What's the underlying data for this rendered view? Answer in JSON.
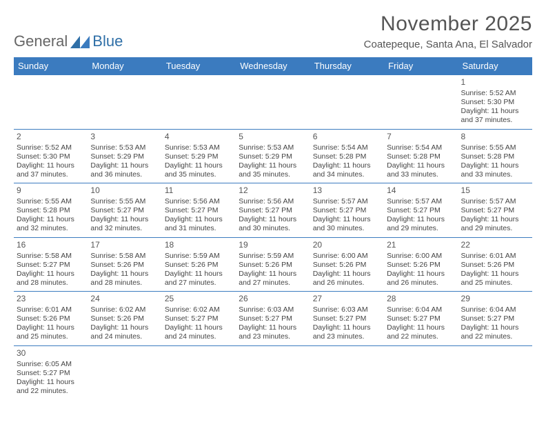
{
  "brand": {
    "general": "General",
    "blue": "Blue"
  },
  "colors": {
    "header_bg": "#3b7bbf",
    "header_text": "#ffffff",
    "cell_border": "#3b7bbf",
    "text": "#444444",
    "brand_blue": "#2F6FA7",
    "brand_grey": "#666666",
    "page_bg": "#ffffff"
  },
  "title": "November 2025",
  "location": "Coatepeque, Santa Ana, El Salvador",
  "weekdays": [
    "Sunday",
    "Monday",
    "Tuesday",
    "Wednesday",
    "Thursday",
    "Friday",
    "Saturday"
  ],
  "cells": [
    null,
    null,
    null,
    null,
    null,
    null,
    {
      "day": "1",
      "sunrise": "5:52 AM",
      "sunset": "5:30 PM",
      "daylight": "11 hours and 37 minutes."
    },
    {
      "day": "2",
      "sunrise": "5:52 AM",
      "sunset": "5:30 PM",
      "daylight": "11 hours and 37 minutes."
    },
    {
      "day": "3",
      "sunrise": "5:53 AM",
      "sunset": "5:29 PM",
      "daylight": "11 hours and 36 minutes."
    },
    {
      "day": "4",
      "sunrise": "5:53 AM",
      "sunset": "5:29 PM",
      "daylight": "11 hours and 35 minutes."
    },
    {
      "day": "5",
      "sunrise": "5:53 AM",
      "sunset": "5:29 PM",
      "daylight": "11 hours and 35 minutes."
    },
    {
      "day": "6",
      "sunrise": "5:54 AM",
      "sunset": "5:28 PM",
      "daylight": "11 hours and 34 minutes."
    },
    {
      "day": "7",
      "sunrise": "5:54 AM",
      "sunset": "5:28 PM",
      "daylight": "11 hours and 33 minutes."
    },
    {
      "day": "8",
      "sunrise": "5:55 AM",
      "sunset": "5:28 PM",
      "daylight": "11 hours and 33 minutes."
    },
    {
      "day": "9",
      "sunrise": "5:55 AM",
      "sunset": "5:28 PM",
      "daylight": "11 hours and 32 minutes."
    },
    {
      "day": "10",
      "sunrise": "5:55 AM",
      "sunset": "5:27 PM",
      "daylight": "11 hours and 32 minutes."
    },
    {
      "day": "11",
      "sunrise": "5:56 AM",
      "sunset": "5:27 PM",
      "daylight": "11 hours and 31 minutes."
    },
    {
      "day": "12",
      "sunrise": "5:56 AM",
      "sunset": "5:27 PM",
      "daylight": "11 hours and 30 minutes."
    },
    {
      "day": "13",
      "sunrise": "5:57 AM",
      "sunset": "5:27 PM",
      "daylight": "11 hours and 30 minutes."
    },
    {
      "day": "14",
      "sunrise": "5:57 AM",
      "sunset": "5:27 PM",
      "daylight": "11 hours and 29 minutes."
    },
    {
      "day": "15",
      "sunrise": "5:57 AM",
      "sunset": "5:27 PM",
      "daylight": "11 hours and 29 minutes."
    },
    {
      "day": "16",
      "sunrise": "5:58 AM",
      "sunset": "5:27 PM",
      "daylight": "11 hours and 28 minutes."
    },
    {
      "day": "17",
      "sunrise": "5:58 AM",
      "sunset": "5:26 PM",
      "daylight": "11 hours and 28 minutes."
    },
    {
      "day": "18",
      "sunrise": "5:59 AM",
      "sunset": "5:26 PM",
      "daylight": "11 hours and 27 minutes."
    },
    {
      "day": "19",
      "sunrise": "5:59 AM",
      "sunset": "5:26 PM",
      "daylight": "11 hours and 27 minutes."
    },
    {
      "day": "20",
      "sunrise": "6:00 AM",
      "sunset": "5:26 PM",
      "daylight": "11 hours and 26 minutes."
    },
    {
      "day": "21",
      "sunrise": "6:00 AM",
      "sunset": "5:26 PM",
      "daylight": "11 hours and 26 minutes."
    },
    {
      "day": "22",
      "sunrise": "6:01 AM",
      "sunset": "5:26 PM",
      "daylight": "11 hours and 25 minutes."
    },
    {
      "day": "23",
      "sunrise": "6:01 AM",
      "sunset": "5:26 PM",
      "daylight": "11 hours and 25 minutes."
    },
    {
      "day": "24",
      "sunrise": "6:02 AM",
      "sunset": "5:26 PM",
      "daylight": "11 hours and 24 minutes."
    },
    {
      "day": "25",
      "sunrise": "6:02 AM",
      "sunset": "5:27 PM",
      "daylight": "11 hours and 24 minutes."
    },
    {
      "day": "26",
      "sunrise": "6:03 AM",
      "sunset": "5:27 PM",
      "daylight": "11 hours and 23 minutes."
    },
    {
      "day": "27",
      "sunrise": "6:03 AM",
      "sunset": "5:27 PM",
      "daylight": "11 hours and 23 minutes."
    },
    {
      "day": "28",
      "sunrise": "6:04 AM",
      "sunset": "5:27 PM",
      "daylight": "11 hours and 22 minutes."
    },
    {
      "day": "29",
      "sunrise": "6:04 AM",
      "sunset": "5:27 PM",
      "daylight": "11 hours and 22 minutes."
    },
    {
      "day": "30",
      "sunrise": "6:05 AM",
      "sunset": "5:27 PM",
      "daylight": "11 hours and 22 minutes."
    },
    null,
    null,
    null,
    null,
    null,
    null
  ],
  "labels": {
    "sunrise": "Sunrise: ",
    "sunset": "Sunset: ",
    "daylight": "Daylight: "
  }
}
